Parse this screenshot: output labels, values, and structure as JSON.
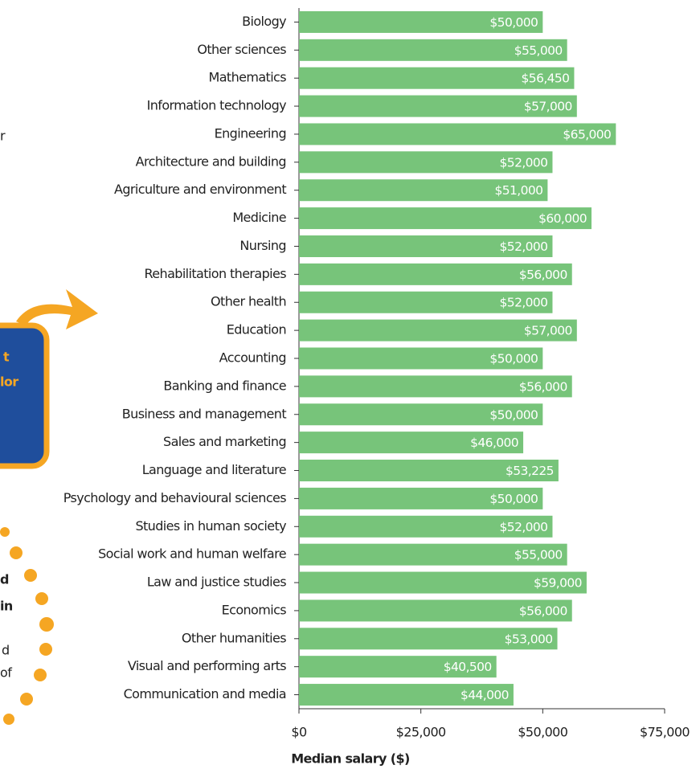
{
  "chart_data": {
    "type": "bar",
    "orientation": "horizontal",
    "x_label": "Median salary ($)",
    "categories": [
      "Biology",
      "Other sciences",
      "Mathematics",
      "Information technology",
      "Engineering",
      "Architecture and building",
      "Agriculture and environment",
      "Medicine",
      "Nursing",
      "Rehabilitation therapies",
      "Other health",
      "Education",
      "Accounting",
      "Banking and finance",
      "Business and management",
      "Sales and marketing",
      "Language and literature",
      "Psychology and behavioural sciences",
      "Studies in human society",
      "Social work and human welfare",
      "Law and justice studies",
      "Economics",
      "Other humanities",
      "Visual and performing arts",
      "Communication and media"
    ],
    "values": [
      50000,
      55000,
      56450,
      57000,
      65000,
      52000,
      51000,
      60000,
      52000,
      56000,
      52000,
      57000,
      50000,
      56000,
      50000,
      46000,
      53225,
      50000,
      52000,
      55000,
      59000,
      56000,
      53000,
      40500,
      44000
    ],
    "value_labels": [
      "$50,000",
      "$55,000",
      "$56,450",
      "$57,000",
      "$65,000",
      "$52,000",
      "$51,000",
      "$60,000",
      "$52,000",
      "$56,000",
      "$52,000",
      "$57,000",
      "$50,000",
      "$56,000",
      "$50,000",
      "$46,000",
      "$53,225",
      "$50,000",
      "$52,000",
      "$55,000",
      "$59,000",
      "$56,000",
      "$53,000",
      "$40,500",
      "$44,000"
    ],
    "color": "#77c47a",
    "xlim": [
      0,
      75000
    ],
    "xticks": [
      {
        "value": 0,
        "label": "$0"
      },
      {
        "value": 25000,
        "label": "$25,000"
      },
      {
        "value": 50000,
        "label": "$50,000"
      },
      {
        "value": 75000,
        "label": "$75,000"
      }
    ],
    "grid": false,
    "annotations": [
      "r",
      "t",
      "lor",
      "d",
      "in",
      "d",
      "of"
    ]
  }
}
